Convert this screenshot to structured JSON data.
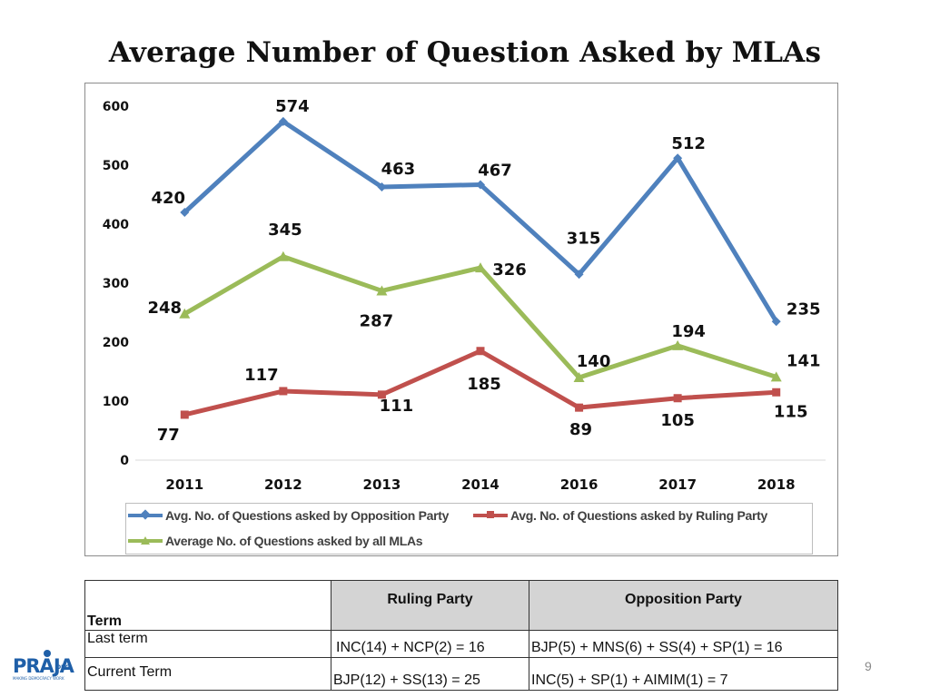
{
  "slide": {
    "title": "Average Number of Question Asked by MLAs",
    "page_number": "9",
    "logo_text": "PRAJA",
    "logo_suffix": "ORG",
    "logo_tagline": "MAKING DEMOCRACY WORK"
  },
  "chart_data": {
    "type": "line",
    "title": "",
    "xlabel": "",
    "ylabel": "",
    "categories": [
      "2011",
      "2012",
      "2013",
      "2014",
      "2016",
      "2017",
      "2018"
    ],
    "ylim": [
      0,
      600
    ],
    "yticks": [
      0,
      100,
      200,
      300,
      400,
      500,
      600
    ],
    "grid": false,
    "legend_position": "bottom",
    "series": [
      {
        "name": "Avg. No. of Questions asked by Opposition Party",
        "color": "#4f81bd",
        "marker": "diamond",
        "values": [
          420,
          574,
          463,
          467,
          315,
          512,
          235
        ]
      },
      {
        "name": "Avg. No. of Questions asked by Ruling Party",
        "color": "#c0504d",
        "marker": "square",
        "values": [
          77,
          117,
          111,
          185,
          89,
          105,
          115
        ]
      },
      {
        "name": "Average No. of Questions asked by all MLAs",
        "color": "#9bbb59",
        "marker": "triangle",
        "values": [
          248,
          345,
          287,
          326,
          140,
          194,
          141
        ]
      }
    ]
  },
  "table": {
    "headers": [
      "Term",
      "Ruling Party",
      "Opposition Party"
    ],
    "rows": [
      [
        "Last term",
        "INC(14) + NCP(2) = 16",
        "BJP(5) + MNS(6) + SS(4) + SP(1) = 16"
      ],
      [
        "Current Term",
        "BJP(12) + SS(13) = 25",
        "INC(5) + SP(1) + AIMIM(1) = 7"
      ]
    ]
  }
}
